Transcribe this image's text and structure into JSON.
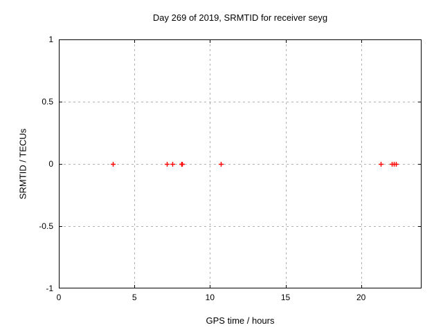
{
  "chart_data": {
    "type": "scatter",
    "title": "Day 269 of 2019, SRMTID for receiver seyg",
    "xlabel": "GPS time / hours",
    "ylabel": "SRMTID / TECUs",
    "xlim": [
      0,
      24
    ],
    "ylim": [
      -1,
      1
    ],
    "x_ticks": [
      0,
      5,
      10,
      15,
      20
    ],
    "y_ticks": [
      1,
      0.5,
      0,
      -0.5,
      -1
    ],
    "grid": true,
    "legend": "none",
    "marker": "plus",
    "series": [
      {
        "name": "SRMTID",
        "x": [
          3.58,
          7.16,
          7.49,
          8.1,
          8.16,
          10.74,
          21.3,
          22.04,
          22.18,
          22.31
        ],
        "y": [
          0,
          0,
          0,
          0,
          0,
          0,
          0,
          0,
          0,
          0
        ]
      }
    ],
    "colors": {
      "marker": "#ff0000",
      "grid": "#b0b0b0",
      "frame": "#000000",
      "background": "#ffffff",
      "text": "#000000"
    }
  }
}
